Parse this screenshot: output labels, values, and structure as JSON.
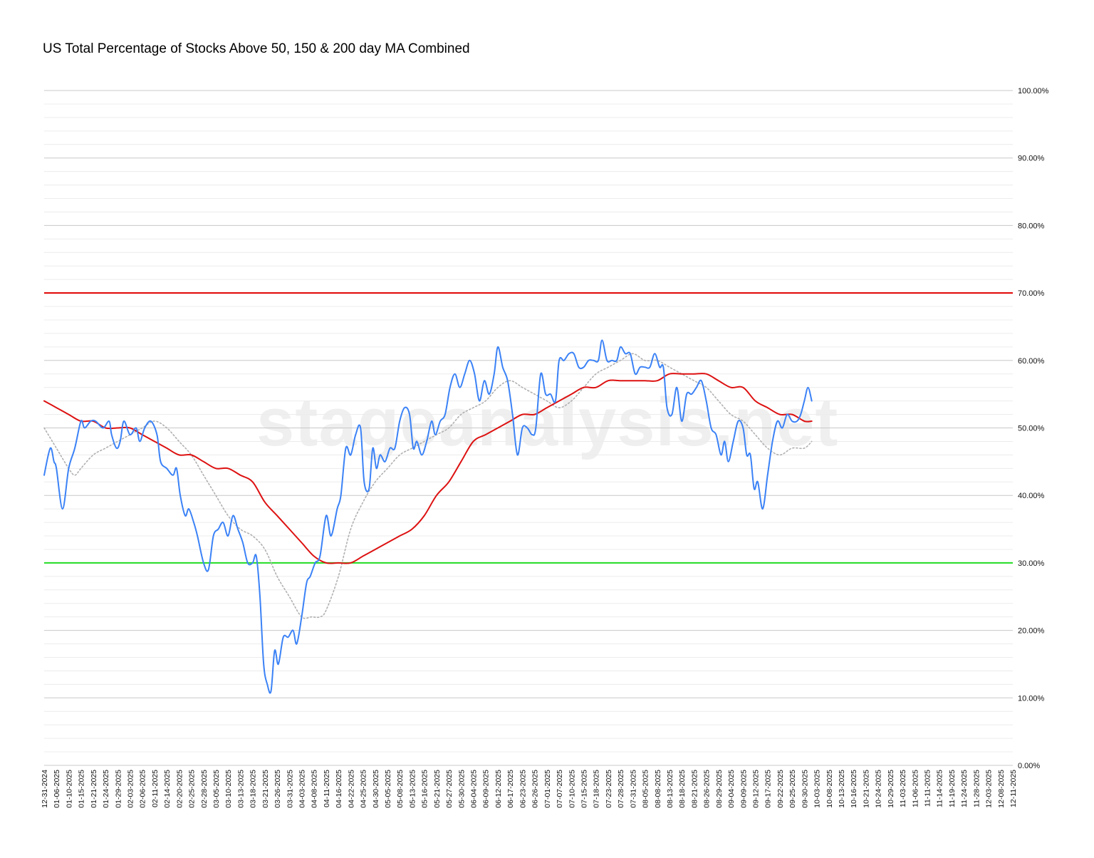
{
  "chart_data": {
    "type": "line",
    "title": "US Total Percentage of Stocks Above 50, 150 & 200 day MA Combined",
    "watermark": "stageanalysis.net",
    "xlabel": "",
    "ylabel": "",
    "ylim": [
      0,
      100
    ],
    "y_ticks": [
      "0.00%",
      "10.00%",
      "20.00%",
      "30.00%",
      "40.00%",
      "50.00%",
      "60.00%",
      "70.00%",
      "80.00%",
      "90.00%",
      "100.00%"
    ],
    "x_ticks": [
      "12-31-2024",
      "01-06-2025",
      "01-10-2025",
      "01-15-2025",
      "01-21-2025",
      "01-24-2025",
      "01-29-2025",
      "02-03-2025",
      "02-06-2025",
      "02-11-2025",
      "02-14-2025",
      "02-20-2025",
      "02-25-2025",
      "02-28-2025",
      "03-05-2025",
      "03-10-2025",
      "03-13-2025",
      "03-18-2025",
      "03-21-2025",
      "03-26-2025",
      "03-31-2025",
      "04-03-2025",
      "04-08-2025",
      "04-11-2025",
      "04-16-2025",
      "04-22-2025",
      "04-25-2025",
      "04-30-2025",
      "05-05-2025",
      "05-08-2025",
      "05-13-2025",
      "05-16-2025",
      "05-21-2025",
      "05-27-2025",
      "05-30-2025",
      "06-04-2025",
      "06-09-2025",
      "06-12-2025",
      "06-17-2025",
      "06-23-2025",
      "06-26-2025",
      "07-01-2025",
      "07-07-2025",
      "07-10-2025",
      "07-15-2025",
      "07-18-2025",
      "07-23-2025",
      "07-28-2025",
      "07-31-2025",
      "08-05-2025",
      "08-08-2025",
      "08-13-2025",
      "08-18-2025",
      "08-21-2025",
      "08-26-2025",
      "08-29-2025",
      "09-04-2025",
      "09-09-2025",
      "09-12-2025",
      "09-17-2025",
      "09-22-2025",
      "09-25-2025",
      "09-30-2025",
      "10-03-2025",
      "10-08-2025",
      "10-13-2025",
      "10-16-2025",
      "10-21-2025",
      "10-24-2025",
      "10-29-2025",
      "11-03-2025",
      "11-06-2025",
      "11-11-2025",
      "11-14-2025",
      "11-19-2025",
      "11-24-2025",
      "11-28-2025",
      "12-03-2025",
      "12-08-2025",
      "12-11-2025"
    ],
    "grid": true,
    "reference_lines": [
      {
        "value": 70,
        "color": "#e00000"
      },
      {
        "value": 30,
        "color": "#22dd22"
      }
    ],
    "series": [
      {
        "color": "#3b82f6",
        "style": "solid",
        "points": [
          [
            0,
            43
          ],
          [
            0.5,
            47
          ],
          [
            0.8,
            45
          ],
          [
            1.0,
            44
          ],
          [
            1.5,
            38
          ],
          [
            2.0,
            44
          ],
          [
            2.5,
            47
          ],
          [
            3.0,
            51
          ],
          [
            3.3,
            50
          ],
          [
            3.8,
            51
          ],
          [
            4.2,
            51
          ],
          [
            4.8,
            50
          ],
          [
            5.3,
            51
          ],
          [
            5.5,
            49
          ],
          [
            5.9,
            47
          ],
          [
            6.2,
            48
          ],
          [
            6.5,
            51
          ],
          [
            7.0,
            49
          ],
          [
            7.5,
            50
          ],
          [
            7.8,
            48
          ],
          [
            8.2,
            50
          ],
          [
            8.7,
            51
          ],
          [
            9.2,
            49
          ],
          [
            9.5,
            45
          ],
          [
            10.0,
            44
          ],
          [
            10.5,
            43
          ],
          [
            10.8,
            44
          ],
          [
            11.1,
            40
          ],
          [
            11.5,
            37
          ],
          [
            11.8,
            38
          ],
          [
            12.2,
            36
          ],
          [
            12.5,
            34
          ],
          [
            13.0,
            30
          ],
          [
            13.4,
            29
          ],
          [
            13.8,
            34
          ],
          [
            14.2,
            35
          ],
          [
            14.6,
            36
          ],
          [
            15.0,
            34
          ],
          [
            15.4,
            37
          ],
          [
            15.8,
            35
          ],
          [
            16.2,
            33
          ],
          [
            16.6,
            30
          ],
          [
            17.0,
            30
          ],
          [
            17.3,
            31
          ],
          [
            17.6,
            25
          ],
          [
            17.9,
            15
          ],
          [
            18.2,
            12
          ],
          [
            18.5,
            11
          ],
          [
            18.8,
            17
          ],
          [
            19.1,
            15
          ],
          [
            19.5,
            19
          ],
          [
            19.9,
            19
          ],
          [
            20.3,
            20
          ],
          [
            20.6,
            18
          ],
          [
            21.0,
            22
          ],
          [
            21.4,
            27
          ],
          [
            21.7,
            28
          ],
          [
            22.1,
            30
          ],
          [
            22.5,
            31
          ],
          [
            23.0,
            37
          ],
          [
            23.4,
            34
          ],
          [
            23.9,
            38
          ],
          [
            24.2,
            40
          ],
          [
            24.6,
            47
          ],
          [
            25.0,
            46
          ],
          [
            25.4,
            49
          ],
          [
            25.8,
            50
          ],
          [
            26.1,
            42
          ],
          [
            26.5,
            41
          ],
          [
            26.8,
            47
          ],
          [
            27.1,
            44
          ],
          [
            27.4,
            46
          ],
          [
            27.8,
            45
          ],
          [
            28.2,
            47
          ],
          [
            28.6,
            47
          ],
          [
            29.0,
            51
          ],
          [
            29.4,
            53
          ],
          [
            29.8,
            52
          ],
          [
            30.1,
            47
          ],
          [
            30.4,
            48
          ],
          [
            30.8,
            46
          ],
          [
            31.2,
            48
          ],
          [
            31.6,
            51
          ],
          [
            31.9,
            49
          ],
          [
            32.3,
            51
          ],
          [
            32.7,
            52
          ],
          [
            33.1,
            56
          ],
          [
            33.5,
            58
          ],
          [
            33.9,
            56
          ],
          [
            34.3,
            58
          ],
          [
            34.7,
            60
          ],
          [
            35.1,
            58
          ],
          [
            35.5,
            54
          ],
          [
            35.9,
            57
          ],
          [
            36.3,
            55
          ],
          [
            36.7,
            58
          ],
          [
            37.0,
            62
          ],
          [
            37.4,
            59
          ],
          [
            37.8,
            57
          ],
          [
            38.2,
            52
          ],
          [
            38.6,
            46
          ],
          [
            39.0,
            50
          ],
          [
            39.4,
            50
          ],
          [
            39.8,
            49
          ],
          [
            40.1,
            50
          ],
          [
            40.5,
            58
          ],
          [
            40.9,
            55
          ],
          [
            41.3,
            55
          ],
          [
            41.7,
            54
          ],
          [
            42.0,
            60
          ],
          [
            42.4,
            60
          ],
          [
            42.8,
            61
          ],
          [
            43.2,
            61
          ],
          [
            43.6,
            59
          ],
          [
            44.0,
            59
          ],
          [
            44.4,
            60
          ],
          [
            44.8,
            60
          ],
          [
            45.2,
            60
          ],
          [
            45.5,
            63
          ],
          [
            45.9,
            60
          ],
          [
            46.3,
            60
          ],
          [
            46.7,
            60
          ],
          [
            47.0,
            62
          ],
          [
            47.4,
            61
          ],
          [
            47.8,
            61
          ],
          [
            48.2,
            58
          ],
          [
            48.6,
            59
          ],
          [
            49.0,
            59
          ],
          [
            49.4,
            59
          ],
          [
            49.8,
            61
          ],
          [
            50.2,
            59
          ],
          [
            50.5,
            59
          ],
          [
            50.8,
            53
          ],
          [
            51.2,
            52
          ],
          [
            51.6,
            56
          ],
          [
            52.0,
            51
          ],
          [
            52.4,
            55
          ],
          [
            52.8,
            55
          ],
          [
            53.2,
            56
          ],
          [
            53.6,
            57
          ],
          [
            54.0,
            54
          ],
          [
            54.4,
            50
          ],
          [
            54.8,
            49
          ],
          [
            55.2,
            46
          ],
          [
            55.5,
            48
          ],
          [
            55.8,
            45
          ],
          [
            56.2,
            48
          ],
          [
            56.6,
            51
          ],
          [
            57.0,
            50
          ],
          [
            57.3,
            46
          ],
          [
            57.6,
            46
          ],
          [
            57.9,
            41
          ],
          [
            58.2,
            42
          ],
          [
            58.6,
            38
          ],
          [
            59.0,
            43
          ],
          [
            59.4,
            48
          ],
          [
            59.8,
            51
          ],
          [
            60.2,
            50
          ],
          [
            60.6,
            52
          ],
          [
            61.0,
            51
          ],
          [
            61.4,
            51
          ],
          [
            61.7,
            52
          ],
          [
            62.0,
            54
          ],
          [
            62.3,
            56
          ],
          [
            62.6,
            54
          ]
        ]
      },
      {
        "color": "#b0b0b0",
        "style": "dotted",
        "points": [
          [
            0,
            50
          ],
          [
            1,
            47
          ],
          [
            2,
            44
          ],
          [
            2.5,
            43
          ],
          [
            3,
            44
          ],
          [
            4,
            46
          ],
          [
            5,
            47
          ],
          [
            6,
            48
          ],
          [
            7,
            49
          ],
          [
            8,
            50
          ],
          [
            9,
            51
          ],
          [
            10,
            50
          ],
          [
            11,
            48
          ],
          [
            12,
            46
          ],
          [
            13,
            43
          ],
          [
            14,
            40
          ],
          [
            15,
            37
          ],
          [
            16,
            35
          ],
          [
            17,
            34
          ],
          [
            18,
            32
          ],
          [
            19,
            28
          ],
          [
            20,
            25
          ],
          [
            21,
            22
          ],
          [
            21.8,
            22
          ],
          [
            22.5,
            22
          ],
          [
            23.0,
            23
          ],
          [
            24,
            28
          ],
          [
            25,
            35
          ],
          [
            26,
            39
          ],
          [
            27,
            42
          ],
          [
            28,
            44
          ],
          [
            29,
            46
          ],
          [
            30,
            47
          ],
          [
            31,
            48
          ],
          [
            32,
            49
          ],
          [
            33,
            50
          ],
          [
            34,
            52
          ],
          [
            35,
            53
          ],
          [
            36,
            54
          ],
          [
            37,
            56
          ],
          [
            38,
            57
          ],
          [
            39,
            56
          ],
          [
            40,
            55
          ],
          [
            41,
            54
          ],
          [
            42,
            53
          ],
          [
            43,
            54
          ],
          [
            44,
            56
          ],
          [
            45,
            58
          ],
          [
            46,
            59
          ],
          [
            47,
            60
          ],
          [
            48,
            61
          ],
          [
            49,
            60
          ],
          [
            50,
            60
          ],
          [
            51,
            59
          ],
          [
            52,
            58
          ],
          [
            53,
            57
          ],
          [
            54,
            56
          ],
          [
            55,
            54
          ],
          [
            56,
            52
          ],
          [
            57,
            51
          ],
          [
            58,
            49
          ],
          [
            59,
            47
          ],
          [
            60,
            46
          ],
          [
            61,
            47
          ],
          [
            62,
            47
          ],
          [
            62.6,
            48
          ]
        ]
      },
      {
        "color": "#dd1111",
        "style": "solid",
        "points": [
          [
            0,
            54
          ],
          [
            1,
            53
          ],
          [
            2,
            52
          ],
          [
            3,
            51
          ],
          [
            4,
            51
          ],
          [
            5,
            50
          ],
          [
            6,
            50
          ],
          [
            7,
            50
          ],
          [
            8,
            49
          ],
          [
            9,
            48
          ],
          [
            10,
            47
          ],
          [
            11,
            46
          ],
          [
            12,
            46
          ],
          [
            13,
            45
          ],
          [
            14,
            44
          ],
          [
            15,
            44
          ],
          [
            16,
            43
          ],
          [
            17,
            42
          ],
          [
            18,
            39
          ],
          [
            19,
            37
          ],
          [
            20,
            35
          ],
          [
            21,
            33
          ],
          [
            22,
            31
          ],
          [
            23,
            30
          ],
          [
            24,
            30
          ],
          [
            25,
            30
          ],
          [
            26,
            31
          ],
          [
            27,
            32
          ],
          [
            28,
            33
          ],
          [
            29,
            34
          ],
          [
            30,
            35
          ],
          [
            31,
            37
          ],
          [
            32,
            40
          ],
          [
            33,
            42
          ],
          [
            34,
            45
          ],
          [
            35,
            48
          ],
          [
            36,
            49
          ],
          [
            37,
            50
          ],
          [
            38,
            51
          ],
          [
            39,
            52
          ],
          [
            40,
            52
          ],
          [
            41,
            53
          ],
          [
            42,
            54
          ],
          [
            43,
            55
          ],
          [
            44,
            56
          ],
          [
            45,
            56
          ],
          [
            46,
            57
          ],
          [
            47,
            57
          ],
          [
            48,
            57
          ],
          [
            49,
            57
          ],
          [
            50,
            57
          ],
          [
            51,
            58
          ],
          [
            52,
            58
          ],
          [
            53,
            58
          ],
          [
            54,
            58
          ],
          [
            55,
            57
          ],
          [
            56,
            56
          ],
          [
            57,
            56
          ],
          [
            58,
            54
          ],
          [
            59,
            53
          ],
          [
            60,
            52
          ],
          [
            61,
            52
          ],
          [
            62,
            51
          ],
          [
            62.6,
            51
          ]
        ]
      }
    ]
  }
}
